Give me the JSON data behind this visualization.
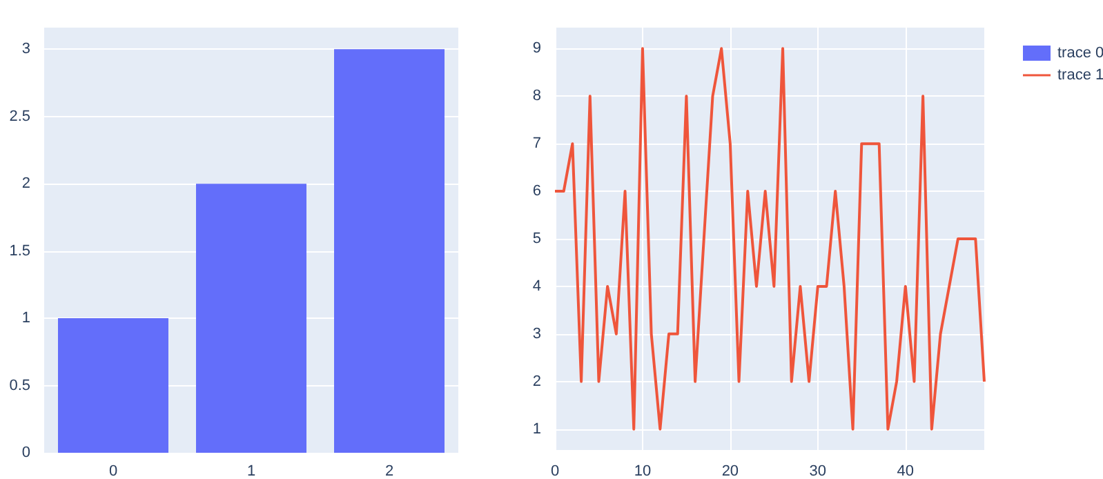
{
  "chart_data": [
    {
      "type": "bar",
      "categories": [
        "0",
        "1",
        "2"
      ],
      "series": [
        {
          "name": "trace 0",
          "color": "#636efa",
          "values": [
            1,
            2,
            3
          ]
        }
      ],
      "ylim": [
        0,
        3.16
      ],
      "yticks": [
        0,
        0.5,
        1,
        1.5,
        2,
        2.5,
        3
      ],
      "grid": true,
      "legend": "top right"
    },
    {
      "type": "line",
      "x": [
        0,
        1,
        2,
        3,
        4,
        5,
        6,
        7,
        8,
        9,
        10,
        11,
        12,
        13,
        14,
        15,
        16,
        17,
        18,
        19,
        20,
        21,
        22,
        23,
        24,
        25,
        26,
        27,
        28,
        29,
        30,
        31,
        32,
        33,
        34,
        35,
        36,
        37,
        38,
        39,
        40,
        41,
        42,
        43,
        44,
        45,
        46,
        47,
        48,
        49
      ],
      "series": [
        {
          "name": "trace 1",
          "color": "#ef553b",
          "values": [
            6,
            6,
            7,
            2,
            8,
            2,
            4,
            3,
            6,
            1,
            9,
            3,
            1,
            3,
            3,
            8,
            2,
            5,
            8,
            9,
            7,
            2,
            6,
            4,
            6,
            4,
            9,
            2,
            4,
            2,
            4,
            4,
            6,
            4,
            1,
            7,
            7,
            7,
            1,
            2,
            4,
            2,
            8,
            1,
            3,
            4,
            5,
            5,
            5,
            2
          ]
        }
      ],
      "xlim": [
        0,
        49
      ],
      "xticks": [
        0,
        10,
        20,
        30,
        40
      ],
      "ylim": [
        0.56,
        9.44
      ],
      "yticks": [
        1,
        2,
        3,
        4,
        5,
        6,
        7,
        8,
        9
      ],
      "grid": true,
      "legend": "top right",
      "marker": "none",
      "line_style": "solid"
    }
  ]
}
